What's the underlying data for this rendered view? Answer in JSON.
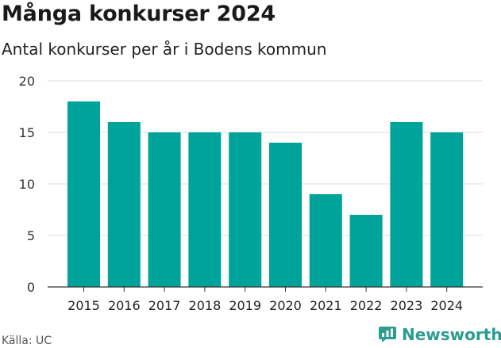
{
  "header": {
    "title": "Många konkurser 2024",
    "subtitle": "Antal konkurser per år i Bodens kommun"
  },
  "footer": {
    "source": "Källa: UC",
    "brand": "Newsworthy",
    "brand_icon": "bar-chart-logo-icon"
  },
  "colors": {
    "bar": "#00a39a",
    "grid": "#dddddd",
    "axis": "#333333",
    "brand": "#2a9d8f"
  },
  "chart_data": {
    "type": "bar",
    "title": "Många konkurser 2024",
    "subtitle": "Antal konkurser per år i Bodens kommun",
    "xlabel": "",
    "ylabel": "",
    "categories": [
      "2015",
      "2016",
      "2017",
      "2018",
      "2019",
      "2020",
      "2021",
      "2022",
      "2023",
      "2024"
    ],
    "values": [
      18,
      16,
      15,
      15,
      15,
      14,
      9,
      7,
      16,
      15
    ],
    "ylim": [
      0,
      20
    ],
    "yticks": [
      0,
      5,
      10,
      15,
      20
    ],
    "grid": true,
    "legend": "none"
  }
}
